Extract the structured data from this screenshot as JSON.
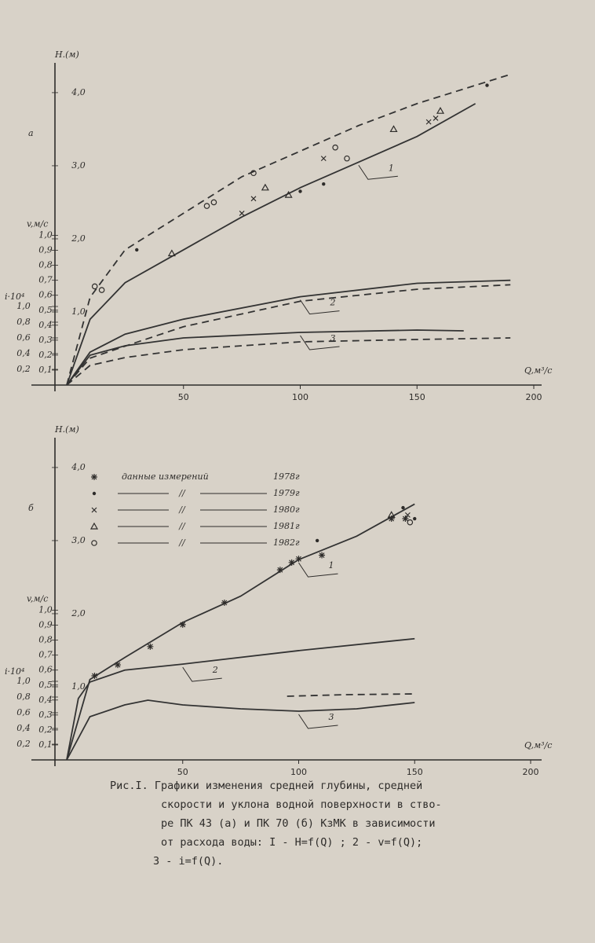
{
  "chart_data": [
    {
      "type": "line",
      "label": "а",
      "x_label": "Q,м³/с",
      "y_label": "H.(м)",
      "y2_label": "v,м/с",
      "y3_label": "i·10⁴",
      "xlim": [
        0,
        200
      ],
      "xticks": [
        50,
        100,
        150,
        200
      ],
      "ylim": [
        0,
        4.3
      ],
      "yticks": [
        {
          "value": 1,
          "label": "1,0"
        },
        {
          "value": 2,
          "label": "2,0"
        },
        {
          "value": 3,
          "label": "3,0"
        },
        {
          "value": 4,
          "label": "4,0"
        }
      ],
      "y2lim": [
        0,
        2.1
      ],
      "y2ticks": [
        {
          "value": 0.1,
          "label": "0,1"
        },
        {
          "value": 0.2,
          "label": "0,2"
        },
        {
          "value": 0.3,
          "label": "0,3"
        },
        {
          "value": 0.4,
          "label": "0,4"
        },
        {
          "value": 0.5,
          "label": "0,5"
        },
        {
          "value": 0.6,
          "label": "0,6"
        },
        {
          "value": 0.7,
          "label": "0,7"
        },
        {
          "value": 0.8,
          "label": "0,8"
        },
        {
          "value": 0.9,
          "label": "0,9"
        },
        {
          "value": 1,
          "label": "1,0"
        }
      ],
      "y3lim": [
        0,
        4.0
      ],
      "y3ticks": [
        {
          "value": 0.2,
          "label": "0,2"
        },
        {
          "value": 0.4,
          "label": "0,4"
        },
        {
          "value": 0.6,
          "label": "0,6"
        },
        {
          "value": 0.8,
          "label": "0,8"
        },
        {
          "value": 1,
          "label": "1,0"
        }
      ],
      "series": [
        {
          "label": "1",
          "axis": "y",
          "dashed": false,
          "color": "#333",
          "x": [
            0,
            10,
            25,
            50,
            75,
            100,
            125,
            150,
            175
          ],
          "values": [
            0,
            0.9,
            1.4,
            1.85,
            2.3,
            2.7,
            3.05,
            3.4,
            3.85
          ]
        },
        {
          "axis": "y",
          "dashed": true,
          "color": "#333",
          "x": [
            0,
            10,
            25,
            50,
            75,
            100,
            125,
            150,
            190
          ],
          "values": [
            0,
            1.2,
            1.85,
            2.35,
            2.85,
            3.2,
            3.55,
            3.85,
            4.25
          ]
        },
        {
          "label": "2",
          "axis": "y2",
          "dashed": false,
          "color": "#333",
          "x": [
            0,
            10,
            25,
            50,
            100,
            150,
            190
          ],
          "values": [
            0,
            0.22,
            0.34,
            0.44,
            0.59,
            0.68,
            0.7
          ]
        },
        {
          "axis": "y2",
          "dashed": true,
          "color": "#333",
          "x": [
            0,
            10,
            25,
            50,
            100,
            150,
            190
          ],
          "values": [
            0,
            0.18,
            0.26,
            0.39,
            0.56,
            0.64,
            0.67
          ]
        },
        {
          "label": "3",
          "axis": "y3",
          "dashed": false,
          "color": "#333",
          "x": [
            0,
            10,
            25,
            50,
            100,
            150,
            170
          ],
          "values": [
            0,
            0.38,
            0.5,
            0.6,
            0.67,
            0.7,
            0.69
          ]
        },
        {
          "axis": "y3",
          "dashed": true,
          "color": "#333",
          "x": [
            0,
            10,
            25,
            50,
            100,
            150,
            190
          ],
          "values": [
            0,
            0.25,
            0.35,
            0.45,
            0.55,
            0.58,
            0.6
          ]
        }
      ],
      "points": [
        {
          "marker": "dot",
          "axis": "y",
          "x": [
            30,
            100,
            110,
            180
          ],
          "values": [
            1.85,
            2.65,
            2.75,
            4.1
          ]
        },
        {
          "marker": "circle",
          "axis": "y",
          "x": [
            12,
            15,
            60,
            63,
            80,
            115,
            120
          ],
          "values": [
            1.35,
            1.3,
            2.45,
            2.5,
            2.9,
            3.25,
            3.1
          ]
        },
        {
          "marker": "triangle",
          "axis": "y",
          "x": [
            45,
            85,
            95,
            140,
            160
          ],
          "values": [
            1.8,
            2.7,
            2.6,
            3.5,
            3.75
          ]
        },
        {
          "marker": "cross",
          "axis": "y",
          "x": [
            75,
            80,
            110,
            155,
            158
          ],
          "values": [
            2.35,
            2.55,
            3.1,
            3.6,
            3.65
          ]
        }
      ]
    },
    {
      "type": "line",
      "label": "б",
      "x_label": "Q,м³/с",
      "y_label": "H.(м)",
      "y2_label": "v,м/с",
      "y3_label": "i·10⁴",
      "xlim": [
        0,
        200
      ],
      "xticks": [
        50,
        100,
        150,
        200
      ],
      "ylim": [
        0,
        4.3
      ],
      "yticks": [
        {
          "value": 1,
          "label": "1,0"
        },
        {
          "value": 2,
          "label": "2,0"
        },
        {
          "value": 3,
          "label": "3,0"
        },
        {
          "value": 4,
          "label": "4,0"
        }
      ],
      "y2lim": [
        0,
        2.1
      ],
      "y2ticks": [
        {
          "value": 0.1,
          "label": "0,1"
        },
        {
          "value": 0.2,
          "label": "0,2"
        },
        {
          "value": 0.3,
          "label": "0,3"
        },
        {
          "value": 0.4,
          "label": "0,4"
        },
        {
          "value": 0.5,
          "label": "0,5"
        },
        {
          "value": 0.6,
          "label": "0,6"
        },
        {
          "value": 0.7,
          "label": "0,7"
        },
        {
          "value": 0.8,
          "label": "0,8"
        },
        {
          "value": 0.9,
          "label": "0,9"
        },
        {
          "value": 1,
          "label": "1,0"
        }
      ],
      "y3lim": [
        0,
        4.0
      ],
      "y3ticks": [
        {
          "value": 0.2,
          "label": "0,2"
        },
        {
          "value": 0.4,
          "label": "0,4"
        },
        {
          "value": 0.6,
          "label": "0,6"
        },
        {
          "value": 0.8,
          "label": "0,8"
        },
        {
          "value": 1,
          "label": "1,0"
        }
      ],
      "series": [
        {
          "label": "1",
          "axis": "y",
          "dashed": false,
          "color": "#333",
          "x": [
            0,
            10,
            25,
            50,
            75,
            100,
            125,
            150
          ],
          "values": [
            0,
            1.1,
            1.4,
            1.88,
            2.24,
            2.74,
            3.06,
            3.5
          ]
        },
        {
          "label": "2",
          "axis": "y2",
          "dashed": false,
          "color": "#333",
          "x": [
            0,
            5,
            10,
            25,
            50,
            100,
            150
          ],
          "values": [
            0,
            0.41,
            0.52,
            0.6,
            0.64,
            0.73,
            0.81
          ]
        },
        {
          "label": "3",
          "axis": "y3",
          "dashed": false,
          "color": "#333",
          "x": [
            0,
            10,
            25,
            35,
            50,
            75,
            100,
            125,
            150
          ],
          "values": [
            0,
            0.55,
            0.7,
            0.76,
            0.7,
            0.65,
            0.62,
            0.65,
            0.73
          ]
        },
        {
          "axis": "y3",
          "dashed": true,
          "color": "#333",
          "x": [
            95,
            120,
            150
          ],
          "values": [
            0.81,
            0.83,
            0.84
          ]
        }
      ],
      "legend_title": "данные измерений",
      "legend_ditto": "//",
      "points": [
        {
          "name": "1978г",
          "marker": "star",
          "axis": "y",
          "x": [
            12,
            22,
            36,
            50,
            68,
            92,
            97,
            100,
            110,
            140,
            146
          ],
          "values": [
            1.15,
            1.3,
            1.55,
            1.85,
            2.15,
            2.6,
            2.7,
            2.75,
            2.8,
            3.3,
            3.3
          ]
        },
        {
          "name": "1979г",
          "marker": "dot",
          "axis": "y",
          "x": [
            108,
            145,
            150
          ],
          "values": [
            3.0,
            3.45,
            3.3
          ]
        },
        {
          "name": "1980г",
          "marker": "cross",
          "axis": "y",
          "x": [
            147
          ],
          "values": [
            3.35
          ]
        },
        {
          "name": "1981г",
          "marker": "triangle",
          "axis": "y",
          "x": [
            140
          ],
          "values": [
            3.35
          ]
        },
        {
          "name": "1982г",
          "marker": "circle",
          "axis": "y",
          "x": [
            148
          ],
          "values": [
            3.25
          ]
        }
      ]
    }
  ],
  "caption": [
    "Рис.I. Графики изменения средней глубины, средней",
    "скорости и уклона водной поверхности в ство-",
    "ре ПК 43 (а) и ПК 70 (б) КзМК в зависимости",
    "от расхода воды: I - H=f(Q) ; 2 - v=f(Q);",
    "3 - i=f(Q)."
  ]
}
